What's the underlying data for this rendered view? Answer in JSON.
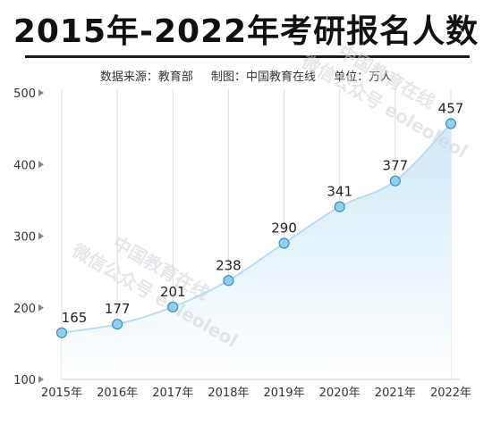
{
  "title": "2015年-2022年考研报名人数",
  "subtitle": {
    "source": "数据来源：教育部",
    "maker": "制图：中国教育在线",
    "unit": "单位：万人"
  },
  "watermark": {
    "line1": "中国教育在线",
    "line2": "微信公众号 eoleoleol"
  },
  "colors": {
    "fill_top": "#cfeaf8",
    "fill_bottom": "#ffffff",
    "line": "#b7dcef",
    "marker": "#8fd0ef",
    "marker_stroke": "#3a8fb7",
    "grid": "#dddddd"
  },
  "chart_data": {
    "type": "area",
    "categories": [
      "2015年",
      "2016年",
      "2017年",
      "2018年",
      "2019年",
      "2020年",
      "2021年",
      "2022年"
    ],
    "values": [
      165,
      177,
      201,
      238,
      290,
      341,
      377,
      457
    ],
    "ylim": [
      100,
      500
    ],
    "yticks": [
      100,
      200,
      300,
      400,
      500
    ],
    "grid": "vertical",
    "data_labels": true
  }
}
